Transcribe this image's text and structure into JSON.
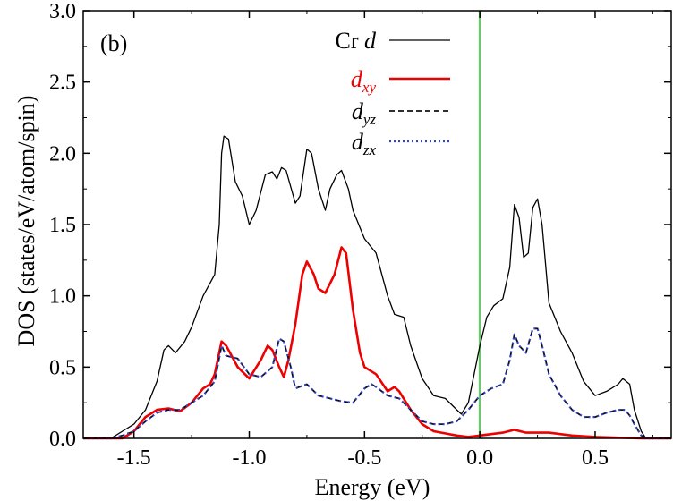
{
  "chart_data": {
    "type": "line",
    "panel_label": "(b)",
    "xlabel": "Energy (eV)",
    "ylabel": "DOS (states/eV/atom/spin)",
    "xlim": [
      -1.72,
      0.83
    ],
    "ylim": [
      0,
      3.0
    ],
    "xticks": [
      -1.5,
      -1.0,
      -0.5,
      0.0,
      0.5
    ],
    "xtick_labels": [
      "-1.5",
      "-1.0",
      "-0.5",
      "0.0",
      "0.5"
    ],
    "yticks": [
      0,
      0.5,
      1.0,
      1.5,
      2.0,
      2.5,
      3.0
    ],
    "ytick_labels": [
      "0.0",
      "0.5",
      "1.0",
      "1.5",
      "2.0",
      "2.5",
      "3.0"
    ],
    "fermi_level": 0.0,
    "fermi_color": "#66cc66",
    "series": [
      {
        "name": "Cr d",
        "legend_main": "Cr ",
        "legend_italic": "d",
        "legend_sub": "",
        "legend_color": "#000000",
        "color": "#000000",
        "style": "solid",
        "width": 1.3,
        "points": [
          [
            -1.72,
            0
          ],
          [
            -1.6,
            0
          ],
          [
            -1.55,
            0.05
          ],
          [
            -1.5,
            0.1
          ],
          [
            -1.45,
            0.2
          ],
          [
            -1.4,
            0.4
          ],
          [
            -1.37,
            0.62
          ],
          [
            -1.35,
            0.65
          ],
          [
            -1.32,
            0.6
          ],
          [
            -1.28,
            0.68
          ],
          [
            -1.25,
            0.78
          ],
          [
            -1.2,
            1.0
          ],
          [
            -1.15,
            1.15
          ],
          [
            -1.13,
            1.5
          ],
          [
            -1.12,
            2.0
          ],
          [
            -1.11,
            2.12
          ],
          [
            -1.09,
            2.1
          ],
          [
            -1.06,
            1.8
          ],
          [
            -1.03,
            1.7
          ],
          [
            -1.0,
            1.5
          ],
          [
            -0.97,
            1.6
          ],
          [
            -0.93,
            1.85
          ],
          [
            -0.9,
            1.87
          ],
          [
            -0.88,
            1.82
          ],
          [
            -0.86,
            1.9
          ],
          [
            -0.84,
            1.88
          ],
          [
            -0.8,
            1.65
          ],
          [
            -0.78,
            1.7
          ],
          [
            -0.75,
            2.03
          ],
          [
            -0.73,
            2.0
          ],
          [
            -0.7,
            1.75
          ],
          [
            -0.67,
            1.6
          ],
          [
            -0.65,
            1.75
          ],
          [
            -0.62,
            1.85
          ],
          [
            -0.6,
            1.88
          ],
          [
            -0.57,
            1.75
          ],
          [
            -0.55,
            1.6
          ],
          [
            -0.5,
            1.4
          ],
          [
            -0.45,
            1.3
          ],
          [
            -0.4,
            1.0
          ],
          [
            -0.37,
            0.87
          ],
          [
            -0.33,
            0.85
          ],
          [
            -0.3,
            0.65
          ],
          [
            -0.25,
            0.42
          ],
          [
            -0.2,
            0.3
          ],
          [
            -0.15,
            0.28
          ],
          [
            -0.1,
            0.2
          ],
          [
            -0.08,
            0.17
          ],
          [
            -0.05,
            0.25
          ],
          [
            0.0,
            0.65
          ],
          [
            0.03,
            0.85
          ],
          [
            0.06,
            0.93
          ],
          [
            0.1,
            0.98
          ],
          [
            0.13,
            1.2
          ],
          [
            0.15,
            1.64
          ],
          [
            0.17,
            1.55
          ],
          [
            0.19,
            1.27
          ],
          [
            0.21,
            1.3
          ],
          [
            0.23,
            1.62
          ],
          [
            0.25,
            1.68
          ],
          [
            0.27,
            1.5
          ],
          [
            0.3,
            0.95
          ],
          [
            0.35,
            0.75
          ],
          [
            0.4,
            0.6
          ],
          [
            0.45,
            0.4
          ],
          [
            0.5,
            0.3
          ],
          [
            0.55,
            0.33
          ],
          [
            0.6,
            0.38
          ],
          [
            0.62,
            0.42
          ],
          [
            0.65,
            0.38
          ],
          [
            0.67,
            0.2
          ],
          [
            0.7,
            0.05
          ],
          [
            0.72,
            0
          ],
          [
            0.83,
            0
          ]
        ]
      },
      {
        "name": "d_xy",
        "legend_main": "",
        "legend_italic": "d",
        "legend_sub": "xy",
        "legend_color": "#ee0000",
        "color": "#ee0000",
        "style": "solid",
        "width": 2.6,
        "points": [
          [
            -1.72,
            0
          ],
          [
            -1.55,
            0
          ],
          [
            -1.5,
            0.05
          ],
          [
            -1.45,
            0.15
          ],
          [
            -1.4,
            0.2
          ],
          [
            -1.35,
            0.21
          ],
          [
            -1.3,
            0.19
          ],
          [
            -1.25,
            0.25
          ],
          [
            -1.2,
            0.35
          ],
          [
            -1.17,
            0.38
          ],
          [
            -1.15,
            0.45
          ],
          [
            -1.12,
            0.68
          ],
          [
            -1.1,
            0.65
          ],
          [
            -1.05,
            0.5
          ],
          [
            -1.0,
            0.42
          ],
          [
            -0.95,
            0.55
          ],
          [
            -0.92,
            0.65
          ],
          [
            -0.9,
            0.62
          ],
          [
            -0.87,
            0.5
          ],
          [
            -0.85,
            0.43
          ],
          [
            -0.83,
            0.55
          ],
          [
            -0.8,
            0.8
          ],
          [
            -0.77,
            1.15
          ],
          [
            -0.75,
            1.24
          ],
          [
            -0.72,
            1.15
          ],
          [
            -0.7,
            1.05
          ],
          [
            -0.67,
            1.02
          ],
          [
            -0.63,
            1.15
          ],
          [
            -0.6,
            1.34
          ],
          [
            -0.58,
            1.3
          ],
          [
            -0.55,
            0.9
          ],
          [
            -0.52,
            0.6
          ],
          [
            -0.5,
            0.5
          ],
          [
            -0.45,
            0.45
          ],
          [
            -0.4,
            0.33
          ],
          [
            -0.37,
            0.36
          ],
          [
            -0.35,
            0.33
          ],
          [
            -0.3,
            0.2
          ],
          [
            -0.25,
            0.1
          ],
          [
            -0.2,
            0.05
          ],
          [
            -0.1,
            0.02
          ],
          [
            -0.05,
            0.01
          ],
          [
            0.0,
            0.02
          ],
          [
            0.05,
            0.03
          ],
          [
            0.1,
            0.04
          ],
          [
            0.15,
            0.06
          ],
          [
            0.2,
            0.04
          ],
          [
            0.3,
            0.04
          ],
          [
            0.4,
            0.02
          ],
          [
            0.5,
            0.01
          ],
          [
            0.7,
            0
          ],
          [
            0.83,
            0
          ]
        ]
      },
      {
        "name": "d_yz",
        "legend_main": "",
        "legend_italic": "d",
        "legend_sub": "yz",
        "legend_color": "#000000",
        "color": "#111111",
        "style": "dashed",
        "width": 1.8,
        "points": [
          [
            -1.72,
            0
          ],
          [
            -1.6,
            0
          ],
          [
            -1.55,
            0.02
          ],
          [
            -1.5,
            0.05
          ],
          [
            -1.45,
            0.12
          ],
          [
            -1.4,
            0.18
          ],
          [
            -1.35,
            0.2
          ],
          [
            -1.3,
            0.2
          ],
          [
            -1.25,
            0.25
          ],
          [
            -1.2,
            0.3
          ],
          [
            -1.15,
            0.4
          ],
          [
            -1.12,
            0.65
          ],
          [
            -1.1,
            0.58
          ],
          [
            -1.05,
            0.56
          ],
          [
            -1.0,
            0.45
          ],
          [
            -0.95,
            0.43
          ],
          [
            -0.9,
            0.5
          ],
          [
            -0.87,
            0.7
          ],
          [
            -0.85,
            0.68
          ],
          [
            -0.82,
            0.5
          ],
          [
            -0.8,
            0.35
          ],
          [
            -0.75,
            0.38
          ],
          [
            -0.7,
            0.3
          ],
          [
            -0.65,
            0.28
          ],
          [
            -0.6,
            0.26
          ],
          [
            -0.55,
            0.25
          ],
          [
            -0.5,
            0.35
          ],
          [
            -0.47,
            0.38
          ],
          [
            -0.45,
            0.36
          ],
          [
            -0.4,
            0.3
          ],
          [
            -0.35,
            0.28
          ],
          [
            -0.3,
            0.2
          ],
          [
            -0.25,
            0.12
          ],
          [
            -0.2,
            0.1
          ],
          [
            -0.15,
            0.1
          ],
          [
            -0.1,
            0.12
          ],
          [
            -0.05,
            0.2
          ],
          [
            0.0,
            0.3
          ],
          [
            0.05,
            0.35
          ],
          [
            0.1,
            0.38
          ],
          [
            0.13,
            0.55
          ],
          [
            0.15,
            0.73
          ],
          [
            0.17,
            0.65
          ],
          [
            0.2,
            0.6
          ],
          [
            0.23,
            0.77
          ],
          [
            0.25,
            0.77
          ],
          [
            0.27,
            0.65
          ],
          [
            0.3,
            0.45
          ],
          [
            0.35,
            0.3
          ],
          [
            0.4,
            0.2
          ],
          [
            0.45,
            0.15
          ],
          [
            0.5,
            0.15
          ],
          [
            0.55,
            0.18
          ],
          [
            0.6,
            0.2
          ],
          [
            0.63,
            0.2
          ],
          [
            0.65,
            0.16
          ],
          [
            0.67,
            0.1
          ],
          [
            0.7,
            0.02
          ],
          [
            0.72,
            0
          ],
          [
            0.83,
            0
          ]
        ]
      },
      {
        "name": "d_zx",
        "legend_main": "",
        "legend_italic": "d",
        "legend_sub": "zx",
        "legend_color": "#000000",
        "color": "#3344cc",
        "style": "dotted",
        "width": 2.2,
        "points": [
          [
            -1.72,
            0
          ],
          [
            -1.6,
            0
          ],
          [
            -1.55,
            0.02
          ],
          [
            -1.5,
            0.05
          ],
          [
            -1.45,
            0.12
          ],
          [
            -1.4,
            0.18
          ],
          [
            -1.35,
            0.2
          ],
          [
            -1.3,
            0.2
          ],
          [
            -1.25,
            0.25
          ],
          [
            -1.2,
            0.3
          ],
          [
            -1.15,
            0.4
          ],
          [
            -1.12,
            0.65
          ],
          [
            -1.1,
            0.58
          ],
          [
            -1.05,
            0.56
          ],
          [
            -1.0,
            0.45
          ],
          [
            -0.95,
            0.43
          ],
          [
            -0.9,
            0.5
          ],
          [
            -0.87,
            0.7
          ],
          [
            -0.85,
            0.68
          ],
          [
            -0.82,
            0.5
          ],
          [
            -0.8,
            0.35
          ],
          [
            -0.75,
            0.38
          ],
          [
            -0.7,
            0.3
          ],
          [
            -0.65,
            0.28
          ],
          [
            -0.6,
            0.26
          ],
          [
            -0.55,
            0.25
          ],
          [
            -0.5,
            0.35
          ],
          [
            -0.47,
            0.38
          ],
          [
            -0.45,
            0.36
          ],
          [
            -0.4,
            0.3
          ],
          [
            -0.35,
            0.28
          ],
          [
            -0.3,
            0.2
          ],
          [
            -0.25,
            0.12
          ],
          [
            -0.2,
            0.1
          ],
          [
            -0.15,
            0.1
          ],
          [
            -0.1,
            0.12
          ],
          [
            -0.05,
            0.2
          ],
          [
            0.0,
            0.3
          ],
          [
            0.05,
            0.35
          ],
          [
            0.1,
            0.38
          ],
          [
            0.13,
            0.55
          ],
          [
            0.15,
            0.73
          ],
          [
            0.17,
            0.65
          ],
          [
            0.2,
            0.6
          ],
          [
            0.23,
            0.77
          ],
          [
            0.25,
            0.77
          ],
          [
            0.27,
            0.65
          ],
          [
            0.3,
            0.45
          ],
          [
            0.35,
            0.3
          ],
          [
            0.4,
            0.2
          ],
          [
            0.45,
            0.15
          ],
          [
            0.5,
            0.15
          ],
          [
            0.55,
            0.18
          ],
          [
            0.6,
            0.2
          ],
          [
            0.63,
            0.2
          ],
          [
            0.65,
            0.16
          ],
          [
            0.67,
            0.1
          ],
          [
            0.7,
            0.02
          ],
          [
            0.72,
            0
          ],
          [
            0.83,
            0
          ]
        ]
      }
    ]
  }
}
